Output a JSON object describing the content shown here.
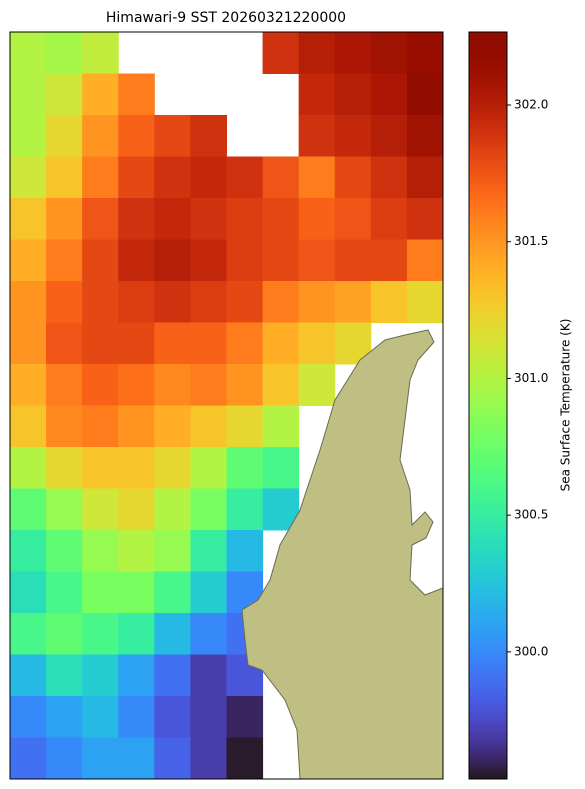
{
  "chart_data": {
    "type": "heatmap",
    "title": "Himawari-9 SST 20260321220000",
    "colorbar_label": "Sea Surface Temperature (K)",
    "colormap": "turbo",
    "clim": [
      299.535,
      302.267
    ],
    "cticks": [
      {
        "value": 300,
        "label": "300.0"
      },
      300.5,
      {
        "value": 301,
        "label": "301.0"
      },
      301.5,
      {
        "value": 302,
        "label": "302.0"
      }
    ],
    "values": [
      [
        301.0,
        300.95,
        301.05,
        null,
        null,
        null,
        null,
        301.9,
        302.0,
        302.05,
        302.1,
        302.15
      ],
      [
        301.0,
        301.1,
        301.4,
        301.6,
        null,
        null,
        null,
        null,
        301.95,
        302.0,
        302.05,
        302.2
      ],
      [
        301.0,
        301.2,
        301.5,
        301.7,
        301.8,
        301.9,
        null,
        null,
        301.9,
        301.95,
        302.0,
        302.1
      ],
      [
        301.1,
        301.3,
        301.6,
        301.8,
        301.9,
        301.95,
        301.9,
        301.75,
        301.6,
        301.8,
        301.9,
        302.0
      ],
      [
        301.3,
        301.5,
        301.75,
        301.9,
        301.95,
        301.9,
        301.85,
        301.8,
        301.7,
        301.75,
        301.85,
        301.9
      ],
      [
        301.4,
        301.6,
        301.8,
        301.95,
        302.0,
        301.95,
        301.85,
        301.8,
        301.75,
        301.8,
        301.8,
        301.6
      ],
      [
        301.5,
        301.7,
        301.8,
        301.85,
        301.9,
        301.85,
        301.8,
        301.6,
        301.5,
        301.45,
        301.3,
        301.2
      ],
      [
        301.5,
        301.75,
        301.8,
        301.8,
        301.7,
        301.7,
        301.6,
        301.4,
        301.3,
        301.2,
        null,
        null
      ],
      [
        301.4,
        301.6,
        301.7,
        301.65,
        301.55,
        301.6,
        301.5,
        301.3,
        301.1,
        null,
        null,
        null
      ],
      [
        301.3,
        301.55,
        301.6,
        301.5,
        301.4,
        301.3,
        301.2,
        301.0,
        null,
        null,
        null,
        null
      ],
      [
        301.0,
        301.2,
        301.3,
        301.3,
        301.2,
        301.0,
        300.7,
        300.6,
        null,
        null,
        null,
        null
      ],
      [
        300.7,
        300.9,
        301.1,
        301.2,
        301.0,
        300.8,
        300.5,
        300.3,
        null,
        null,
        null,
        null
      ],
      [
        300.5,
        300.7,
        300.9,
        301.0,
        300.9,
        300.5,
        300.2,
        null,
        null,
        null,
        null,
        null
      ],
      [
        300.4,
        300.6,
        300.8,
        300.8,
        300.6,
        300.3,
        300.0,
        null,
        null,
        null,
        null,
        null
      ],
      [
        300.6,
        300.7,
        300.6,
        300.5,
        300.2,
        300.0,
        299.9,
        null,
        null,
        null,
        null,
        null
      ],
      [
        300.2,
        300.4,
        300.3,
        300.1,
        299.9,
        299.7,
        299.8,
        null,
        null,
        null,
        null,
        null
      ],
      [
        300.0,
        300.1,
        300.2,
        300.0,
        299.8,
        299.7,
        299.6,
        null,
        null,
        null,
        null,
        null
      ],
      [
        299.9,
        300.0,
        300.1,
        300.1,
        299.85,
        299.7,
        299.55,
        null,
        null,
        null,
        null,
        null
      ]
    ]
  }
}
